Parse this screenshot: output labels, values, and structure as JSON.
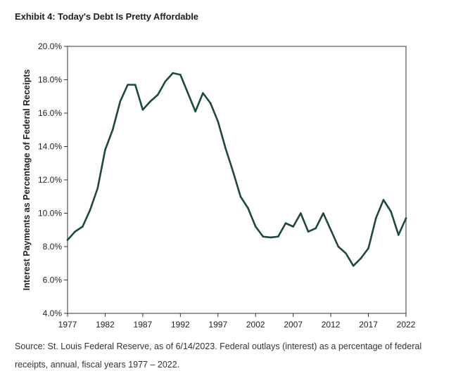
{
  "title": "Exhibit 4: Today's Debt Is Pretty Affordable",
  "source": "Source: St. Louis Federal Reserve, as of 6/14/2023. Federal outlays (interest) as a percentage of federal receipts, annual, fiscal years 1977 – 2022.",
  "colors": {
    "line": "#1c4a3a",
    "axis": "#333333"
  },
  "chart_data": {
    "type": "line",
    "title": "",
    "xlabel": "",
    "ylabel": "Interest Payments as Percentage of Federal Receipts",
    "xlim": [
      1977,
      2022
    ],
    "ylim": [
      4.0,
      20.0
    ],
    "x_ticks": [
      1977,
      1982,
      1987,
      1992,
      1997,
      2002,
      2007,
      2012,
      2017,
      2022
    ],
    "x_tick_labels": [
      "1977",
      "1982",
      "1987",
      "1992",
      "1997",
      "2002",
      "2007",
      "2012",
      "2017",
      "2022"
    ],
    "y_ticks": [
      4,
      6,
      8,
      10,
      12,
      14,
      16,
      18,
      20
    ],
    "y_tick_labels": [
      "4.0%",
      "6.0%",
      "8.0%",
      "10.0%",
      "12.0%",
      "14.0%",
      "16.0%",
      "18.0%",
      "20.0%"
    ],
    "grid": false,
    "legend": "none",
    "x": [
      1977,
      1978,
      1979,
      1980,
      1981,
      1982,
      1983,
      1984,
      1985,
      1986,
      1987,
      1988,
      1989,
      1990,
      1991,
      1992,
      1993,
      1994,
      1995,
      1996,
      1997,
      1998,
      1999,
      2000,
      2001,
      2002,
      2003,
      2004,
      2005,
      2006,
      2007,
      2008,
      2009,
      2010,
      2011,
      2012,
      2013,
      2014,
      2015,
      2016,
      2017,
      2018,
      2019,
      2020,
      2021,
      2022
    ],
    "values": [
      8.4,
      8.9,
      9.2,
      10.2,
      11.5,
      13.8,
      15.0,
      16.7,
      17.7,
      17.7,
      16.2,
      16.7,
      17.1,
      17.9,
      18.4,
      18.3,
      17.2,
      16.1,
      17.2,
      16.6,
      15.5,
      13.9,
      12.5,
      11.0,
      10.3,
      9.2,
      8.6,
      8.55,
      8.6,
      9.4,
      9.2,
      10.0,
      8.9,
      9.1,
      10.0,
      9.0,
      8.0,
      7.6,
      6.85,
      7.3,
      7.9,
      9.7,
      10.8,
      10.1,
      8.7,
      9.7
    ]
  }
}
